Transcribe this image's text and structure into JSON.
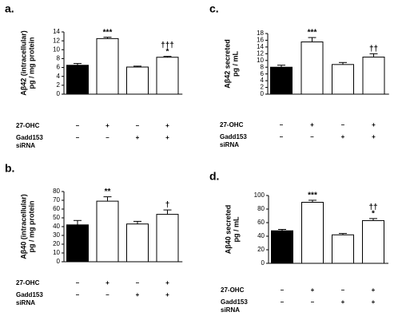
{
  "chart_data": [
    {
      "type": "bar",
      "panel": "a.",
      "ylabel": [
        "Aβ42 (intracellular)",
        "pg / mg protein"
      ],
      "ylim": [
        0,
        14
      ],
      "yticks": [
        0,
        2,
        4,
        6,
        8,
        10,
        12,
        14
      ],
      "categories": [
        null,
        null,
        null,
        null
      ],
      "values": [
        6.5,
        12.5,
        6.1,
        8.3
      ],
      "errors": [
        0.4,
        0.3,
        0.2,
        0.2
      ],
      "colors": [
        "#000000",
        "#ffffff",
        "#ffffff",
        "#ffffff"
      ],
      "annotations": [
        null,
        [
          "***"
        ],
        null,
        [
          "†††",
          "*"
        ]
      ],
      "treatments": [
        {
          "name": [
            "27-OHC"
          ],
          "signs": [
            "–",
            "+",
            "–",
            "+"
          ]
        },
        {
          "name": [
            "Gadd153",
            "siRNA"
          ],
          "signs": [
            "–",
            "–",
            "+",
            "+"
          ]
        }
      ]
    },
    {
      "type": "bar",
      "panel": "b.",
      "ylabel": [
        "Aβ40 (intracellular)",
        "pg / mg protein"
      ],
      "ylim": [
        0,
        80
      ],
      "yticks": [
        0,
        10,
        20,
        30,
        40,
        50,
        60,
        70,
        80
      ],
      "categories": [
        null,
        null,
        null,
        null
      ],
      "values": [
        42,
        69,
        43,
        54
      ],
      "errors": [
        5,
        5,
        3,
        5
      ],
      "colors": [
        "#000000",
        "#ffffff",
        "#ffffff",
        "#ffffff"
      ],
      "annotations": [
        null,
        [
          "**"
        ],
        null,
        [
          "†"
        ]
      ],
      "treatments": [
        {
          "name": [
            "27-OHC"
          ],
          "signs": [
            "–",
            "+",
            "–",
            "+"
          ]
        },
        {
          "name": [
            "Gadd153",
            "siRNA"
          ],
          "signs": [
            "–",
            "–",
            "+",
            "+"
          ]
        }
      ]
    },
    {
      "type": "bar",
      "panel": "c.",
      "ylabel": [
        "Aβ42 secreted",
        "pg / mL"
      ],
      "ylim": [
        0,
        18
      ],
      "yticks": [
        0,
        2,
        4,
        6,
        8,
        10,
        12,
        14,
        16,
        18
      ],
      "categories": [
        null,
        null,
        null,
        null
      ],
      "values": [
        8,
        15.5,
        8.8,
        11
      ],
      "errors": [
        0.6,
        1.3,
        0.6,
        1
      ],
      "colors": [
        "#000000",
        "#ffffff",
        "#ffffff",
        "#ffffff"
      ],
      "annotations": [
        null,
        [
          "***"
        ],
        null,
        [
          "††"
        ]
      ],
      "treatments": [
        {
          "name": [
            "27-OHC"
          ],
          "signs": [
            "–",
            "+",
            "–",
            "+"
          ]
        },
        {
          "name": [
            "Gadd153",
            "siRNA"
          ],
          "signs": [
            "–",
            "–",
            "+",
            "+"
          ]
        }
      ]
    },
    {
      "type": "bar",
      "panel": "d.",
      "ylabel": [
        "Aβ40 secreted",
        "pg / mL"
      ],
      "ylim": [
        0,
        100
      ],
      "yticks": [
        0,
        20,
        40,
        60,
        80,
        100
      ],
      "categories": [
        null,
        null,
        null,
        null
      ],
      "values": [
        48,
        90,
        42,
        63
      ],
      "errors": [
        2,
        3,
        2,
        3
      ],
      "colors": [
        "#000000",
        "#ffffff",
        "#ffffff",
        "#ffffff"
      ],
      "annotations": [
        null,
        [
          "***"
        ],
        null,
        [
          "††",
          "*"
        ]
      ],
      "treatments": [
        {
          "name": [
            "27-OHC"
          ],
          "signs": [
            "–",
            "+",
            "–",
            "+"
          ]
        },
        {
          "name": [
            "Gadd153",
            "siRNA"
          ],
          "signs": [
            "–",
            "–",
            "+",
            "+"
          ]
        }
      ]
    }
  ]
}
